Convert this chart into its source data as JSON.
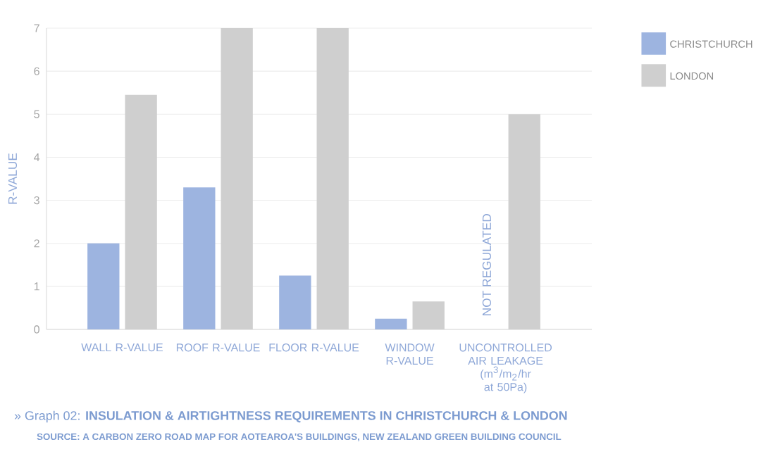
{
  "chart_data": {
    "type": "bar",
    "title": "» Graph 02: **INSULATION & AIRTIGHTNESS REQUIREMENTS IN CHRISTCHURCH & LONDON**",
    "subtitle": "SOURCE: A CARBON ZERO ROAD MAP FOR AOTEAROA'S BUILDINGS, NEW ZEALAND GREEN BUILDING COUNCIL",
    "ylabel": "R-VALUE",
    "categories": [
      "WALL R-VALUE",
      "ROOF R-VALUE",
      "FLOOR R-VALUE",
      "WINDOW R-VALUE",
      "UNCONTROLLED AIR LEAKAGE (m$^{3}$/m$_{2}$/hr at 50Pa)"
    ],
    "series": [
      {
        "name": "CHRISTCHURCH",
        "color": "#9db4e0",
        "values": [
          2.0,
          3.3,
          1.25,
          0.25,
          null
        ]
      },
      {
        "name": "LONDON",
        "color": "#cfcfcf",
        "values": [
          5.45,
          7,
          7,
          0.65,
          5.0
        ]
      }
    ],
    "annotations": [
      {
        "text": "NOT REGULATED",
        "x": "UNCONTROLLED AIR LEAKAGE (m$^{3}$/m$_{2}$/hr at 50Pa)",
        "y": 1.5
      }
    ],
    "ylim": [
      0,
      7
    ],
    "yticks": [
      0,
      1,
      2,
      3,
      4,
      5,
      6,
      7
    ],
    "grid": "y",
    "legend": "right"
  }
}
